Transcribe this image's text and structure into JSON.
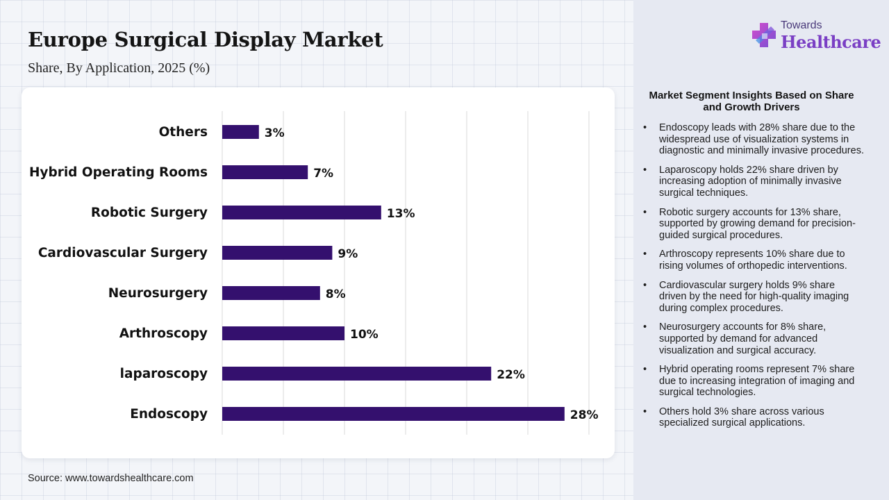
{
  "header": {
    "title": "Europe Surgical Display Market",
    "subtitle": "Share, By Application, 2025 (%)"
  },
  "logo": {
    "top_text": "Towards",
    "main_text": "Healthcare",
    "icon": "medical-cross-icon"
  },
  "chart_data": {
    "type": "bar",
    "orientation": "horizontal",
    "categories": [
      "Others",
      "Hybrid Operating Rooms",
      "Robotic Surgery",
      "Cardiovascular Surgery",
      "Neurosurgery",
      "Arthroscopy",
      "laparoscopy",
      "Endoscopy"
    ],
    "values": [
      3,
      7,
      13,
      9,
      8,
      10,
      22,
      28
    ],
    "value_labels": [
      "3%",
      "7%",
      "13%",
      "9%",
      "8%",
      "10%",
      "22%",
      "28%"
    ],
    "xlim": [
      0,
      30
    ],
    "grid": true,
    "bar_color": "#34106e"
  },
  "insights": {
    "heading": "Market Segment Insights Based on Share and Growth Drivers",
    "items": [
      "Endoscopy leads with 28% share due to the widespread use of visualization systems in diagnostic and minimally invasive procedures.",
      "Laparoscopy holds 22% share driven by increasing adoption of minimally invasive surgical techniques.",
      "Robotic surgery accounts for 13% share, supported by growing demand for precision-guided surgical procedures.",
      "Arthroscopy represents 10% share due to rising volumes of orthopedic interventions.",
      "Cardiovascular surgery holds 9% share driven by the need for high-quality imaging during complex procedures.",
      "Neurosurgery accounts for 8% share, supported by demand for advanced visualization and surgical accuracy.",
      "Hybrid operating rooms represent 7% share due to increasing integration of imaging and surgical technologies.",
      "Others hold 3% share across various specialized surgical applications."
    ]
  },
  "footer": {
    "source": "Source: www.towardshealthcare.com"
  }
}
